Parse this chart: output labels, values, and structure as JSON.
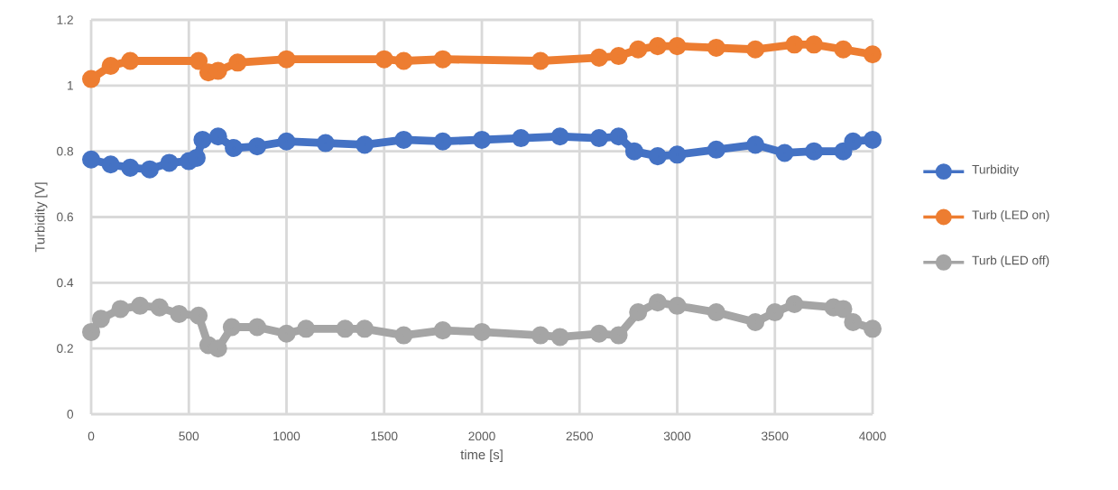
{
  "chart_data": {
    "type": "line",
    "xlabel": "time [s]",
    "ylabel": "Turbidity [V]",
    "xlim": [
      0,
      4000
    ],
    "ylim": [
      0,
      1.2
    ],
    "xticks": [
      0,
      500,
      1000,
      1500,
      2000,
      2500,
      3000,
      3500,
      4000
    ],
    "yticks": [
      0,
      0.2,
      0.4,
      0.6,
      0.8,
      1,
      1.2
    ],
    "grid": true,
    "legend": "right",
    "marker": "circle",
    "line_style": "solid",
    "series": [
      {
        "name": "Turbidity",
        "color": "#4472c4",
        "x": [
          0,
          100,
          200,
          300,
          400,
          500,
          540,
          570,
          650,
          730,
          850,
          1000,
          1200,
          1400,
          1600,
          1800,
          2000,
          2200,
          2400,
          2600,
          2700,
          2780,
          2900,
          3000,
          3200,
          3400,
          3550,
          3700,
          3850,
          3900,
          4000
        ],
        "values": [
          0.775,
          0.76,
          0.75,
          0.745,
          0.765,
          0.77,
          0.78,
          0.835,
          0.845,
          0.81,
          0.815,
          0.83,
          0.825,
          0.82,
          0.835,
          0.83,
          0.835,
          0.84,
          0.845,
          0.84,
          0.845,
          0.8,
          0.785,
          0.79,
          0.805,
          0.82,
          0.795,
          0.8,
          0.8,
          0.83,
          0.835
        ]
      },
      {
        "name": "Turb (LED on)",
        "color": "#ed7d31",
        "x": [
          0,
          100,
          200,
          550,
          600,
          650,
          750,
          1000,
          1500,
          1600,
          1800,
          2300,
          2600,
          2700,
          2800,
          2900,
          3000,
          3200,
          3400,
          3600,
          3700,
          3850,
          4000
        ],
        "values": [
          1.02,
          1.06,
          1.075,
          1.075,
          1.04,
          1.045,
          1.07,
          1.08,
          1.08,
          1.075,
          1.08,
          1.075,
          1.085,
          1.09,
          1.11,
          1.12,
          1.12,
          1.115,
          1.11,
          1.125,
          1.125,
          1.11,
          1.095
        ]
      },
      {
        "name": "Turb (LED off)",
        "color": "#a5a5a5",
        "x": [
          0,
          50,
          150,
          250,
          350,
          450,
          550,
          600,
          650,
          720,
          850,
          1000,
          1100,
          1300,
          1400,
          1600,
          1800,
          2000,
          2300,
          2400,
          2600,
          2700,
          2800,
          2900,
          3000,
          3200,
          3400,
          3500,
          3600,
          3800,
          3850,
          3900,
          4000
        ],
        "values": [
          0.25,
          0.29,
          0.32,
          0.33,
          0.325,
          0.305,
          0.3,
          0.21,
          0.2,
          0.265,
          0.265,
          0.245,
          0.26,
          0.26,
          0.26,
          0.24,
          0.255,
          0.25,
          0.24,
          0.235,
          0.245,
          0.24,
          0.31,
          0.34,
          0.33,
          0.31,
          0.28,
          0.31,
          0.335,
          0.325,
          0.32,
          0.28,
          0.26
        ]
      }
    ]
  }
}
